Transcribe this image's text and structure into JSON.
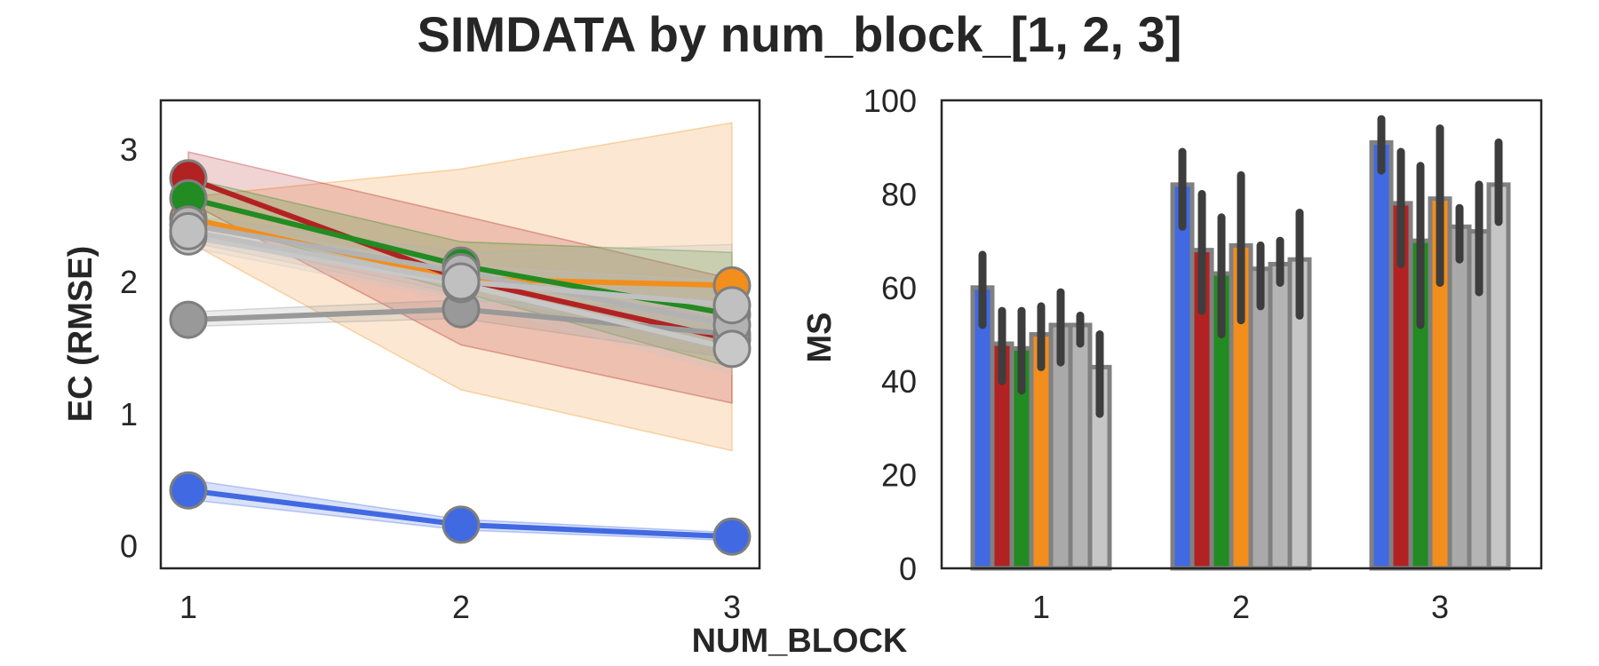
{
  "figure": {
    "title": "SIMDATA by num_block_[1, 2, 3]",
    "shared_xlabel": "NUM_BLOCK"
  },
  "chart_data": [
    {
      "type": "line",
      "ylabel": "EC (RMSE)",
      "x": [
        1,
        2,
        3
      ],
      "xticks": [
        "1",
        "2",
        "3"
      ],
      "yticks": [
        "0",
        "1",
        "2",
        "3"
      ],
      "ylim": [
        -0.17,
        3.37
      ],
      "grid": false,
      "series": [
        {
          "color": "#f28e1c",
          "values": [
            2.48,
            2.02,
            1.97
          ],
          "band_low": [
            2.3,
            1.18,
            0.72
          ],
          "band_high": [
            2.64,
            2.85,
            3.2
          ]
        },
        {
          "color": "#b22222",
          "values": [
            2.78,
            2.02,
            1.56
          ],
          "band_low": [
            2.6,
            1.52,
            1.08
          ],
          "band_high": [
            2.98,
            2.5,
            2.02
          ]
        },
        {
          "color": "#228b22",
          "values": [
            2.63,
            2.12,
            1.75
          ],
          "band_low": [
            2.48,
            1.92,
            1.35
          ],
          "band_high": [
            2.78,
            2.3,
            2.22
          ]
        },
        {
          "color": "#999999",
          "values": [
            1.71,
            1.79,
            1.6
          ],
          "band_low": [
            1.66,
            1.72,
            1.42
          ],
          "band_high": [
            1.77,
            1.86,
            1.78
          ]
        },
        {
          "color": "#b2b2b2",
          "values": [
            2.43,
            2.07,
            1.67
          ],
          "band_low": [
            2.35,
            1.9,
            1.45
          ],
          "band_high": [
            2.5,
            2.22,
            2.28
          ]
        },
        {
          "color": "#c8c8c8",
          "values": [
            2.34,
            1.98,
            1.49
          ],
          "band_low": [
            2.26,
            1.85,
            1.3
          ],
          "band_high": [
            2.42,
            2.12,
            1.72
          ]
        },
        {
          "color": "#c0c0c0",
          "values": [
            2.38,
            2.0,
            1.82
          ],
          "band_low": [
            2.3,
            1.88,
            1.6
          ],
          "band_high": [
            2.46,
            2.12,
            2.0
          ]
        },
        {
          "color": "#4169e1",
          "values": [
            0.42,
            0.16,
            0.07
          ],
          "band_low": [
            0.35,
            0.12,
            0.04
          ],
          "band_high": [
            0.5,
            0.2,
            0.1
          ]
        }
      ]
    },
    {
      "type": "bar",
      "ylabel": "MS",
      "categories": [
        "1",
        "2",
        "3"
      ],
      "yticks": [
        "0",
        "20",
        "40",
        "60",
        "80",
        "100"
      ],
      "ylim": [
        0,
        100
      ],
      "grid": false,
      "series": [
        {
          "color": "#4169e1",
          "values": [
            60,
            82,
            91
          ],
          "err_low": [
            52,
            73,
            85
          ],
          "err_high": [
            67,
            89,
            96
          ]
        },
        {
          "color": "#b22222",
          "values": [
            48,
            68,
            78
          ],
          "err_low": [
            40,
            55,
            65
          ],
          "err_high": [
            55,
            80,
            89
          ]
        },
        {
          "color": "#228b22",
          "values": [
            47,
            63,
            70
          ],
          "err_low": [
            38,
            50,
            52
          ],
          "err_high": [
            55,
            75,
            86
          ]
        },
        {
          "color": "#f28e1c",
          "values": [
            50,
            69,
            79
          ],
          "err_low": [
            43,
            53,
            61
          ],
          "err_high": [
            56,
            84,
            94
          ]
        },
        {
          "color": "#a9a9a9",
          "values": [
            52,
            64,
            73
          ],
          "err_low": [
            44,
            56,
            66
          ],
          "err_high": [
            59,
            69,
            77
          ]
        },
        {
          "color": "#b4b4b4",
          "values": [
            52,
            65,
            72
          ],
          "err_low": [
            48,
            61,
            59
          ],
          "err_high": [
            54,
            70,
            82
          ]
        },
        {
          "color": "#c6c6c6",
          "values": [
            43,
            66,
            82
          ],
          "err_low": [
            33,
            54,
            74
          ],
          "err_high": [
            50,
            76,
            91
          ]
        }
      ]
    }
  ]
}
